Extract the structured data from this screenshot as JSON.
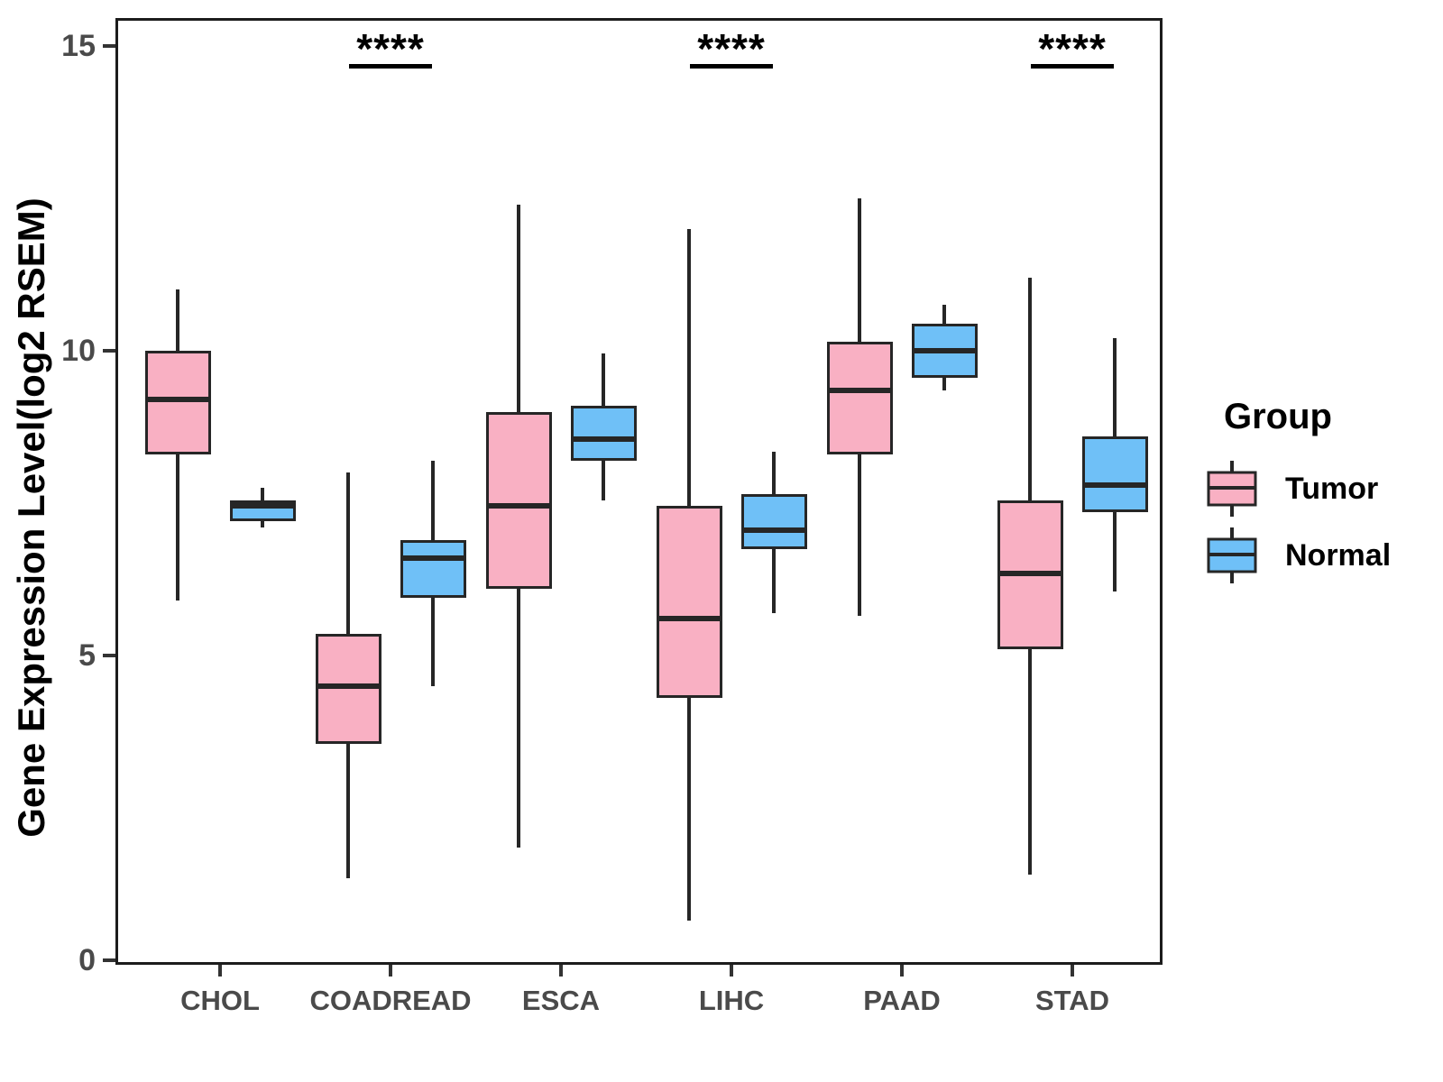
{
  "figure": {
    "y_axis_title": "Gene Expression Level(log2 RSEM)"
  },
  "legend": {
    "title": "Group",
    "items": [
      {
        "label": "Tumor",
        "color": "#F9B0C3"
      },
      {
        "label": "Normal",
        "color": "#6FC0F7"
      }
    ]
  },
  "chart_data": {
    "type": "boxplot",
    "title": "",
    "xlabel": "",
    "ylabel": "Gene Expression Level(log2 RSEM)",
    "ylim": [
      0,
      15.4
    ],
    "y_ticks": [
      0,
      5,
      10,
      15
    ],
    "grid": false,
    "legend_position": "right",
    "categories": [
      "CHOL",
      "COADREAD",
      "ESCA",
      "LIHC",
      "PAAD",
      "STAD"
    ],
    "groups": [
      {
        "name": "Tumor",
        "color": "#F9B0C3"
      },
      {
        "name": "Normal",
        "color": "#6FC0F7"
      }
    ],
    "line_color": "#262626",
    "series": [
      {
        "name": "Tumor",
        "boxes": [
          {
            "category": "CHOL",
            "whisker_low": 5.9,
            "q1": 8.3,
            "median": 9.2,
            "q3": 10.0,
            "whisker_high": 11.0
          },
          {
            "category": "COADREAD",
            "whisker_low": 1.35,
            "q1": 3.55,
            "median": 4.5,
            "q3": 5.35,
            "whisker_high": 8.0
          },
          {
            "category": "ESCA",
            "whisker_low": 1.85,
            "q1": 6.1,
            "median": 7.45,
            "q3": 9.0,
            "whisker_high": 12.4
          },
          {
            "category": "LIHC",
            "whisker_low": 0.65,
            "q1": 4.3,
            "median": 5.6,
            "q3": 7.45,
            "whisker_high": 12.0
          },
          {
            "category": "PAAD",
            "whisker_low": 5.65,
            "q1": 8.3,
            "median": 9.35,
            "q3": 10.15,
            "whisker_high": 12.5
          },
          {
            "category": "STAD",
            "whisker_low": 1.4,
            "q1": 5.1,
            "median": 6.35,
            "q3": 7.55,
            "whisker_high": 11.2
          }
        ]
      },
      {
        "name": "Normal",
        "boxes": [
          {
            "category": "CHOL",
            "whisker_low": 7.1,
            "q1": 7.2,
            "median": 7.45,
            "q3": 7.55,
            "whisker_high": 7.75
          },
          {
            "category": "COADREAD",
            "whisker_low": 4.5,
            "q1": 5.95,
            "median": 6.6,
            "q3": 6.9,
            "whisker_high": 8.2
          },
          {
            "category": "ESCA",
            "whisker_low": 7.55,
            "q1": 8.2,
            "median": 8.55,
            "q3": 9.1,
            "whisker_high": 9.95
          },
          {
            "category": "LIHC",
            "whisker_low": 5.7,
            "q1": 6.75,
            "median": 7.05,
            "q3": 7.65,
            "whisker_high": 8.35
          },
          {
            "category": "PAAD",
            "whisker_low": 9.35,
            "q1": 9.55,
            "median": 10.0,
            "q3": 10.45,
            "whisker_high": 10.75
          },
          {
            "category": "STAD",
            "whisker_low": 6.05,
            "q1": 7.35,
            "median": 7.8,
            "q3": 8.6,
            "whisker_high": 10.2
          }
        ]
      }
    ],
    "significance": [
      {
        "category": "COADREAD",
        "label": "****",
        "bar_y": 14.7
      },
      {
        "category": "LIHC",
        "label": "****",
        "bar_y": 14.7
      },
      {
        "category": "STAD",
        "label": "****",
        "bar_y": 14.7
      }
    ]
  }
}
